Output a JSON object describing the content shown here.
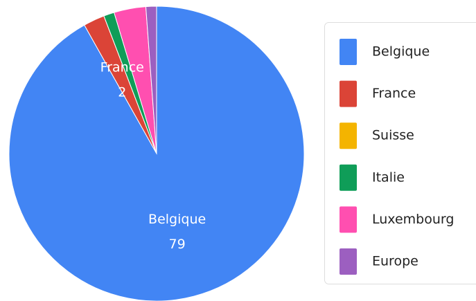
{
  "chart_data": {
    "type": "pie",
    "categories": [
      "Belgique",
      "France",
      "Suisse",
      "Italie",
      "Luxembourg",
      "Europe"
    ],
    "values": [
      79,
      2,
      0,
      1,
      3,
      1
    ],
    "colors": [
      "#4285f4",
      "#db4437",
      "#f4b400",
      "#0f9d58",
      "#ff4fb0",
      "#9c5fc0"
    ],
    "show_labels": [
      true,
      true,
      false,
      false,
      false,
      false
    ],
    "legend": "right"
  }
}
